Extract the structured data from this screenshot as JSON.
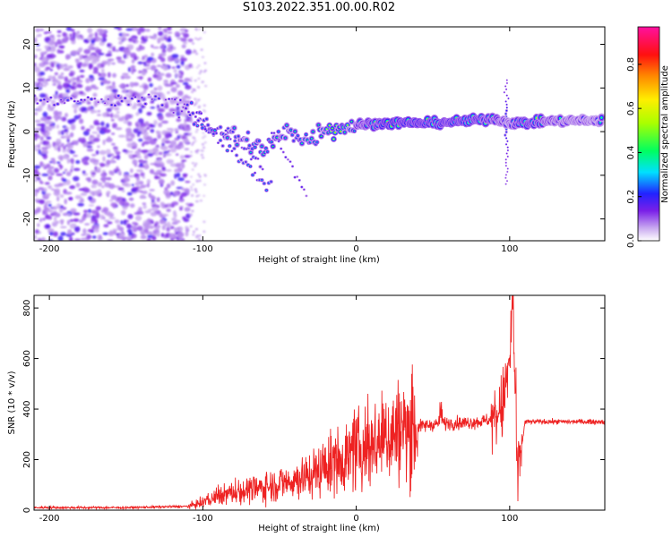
{
  "title": "S103.2022.351.00.00.R02",
  "chart_data": [
    {
      "type": "heatmap",
      "xlabel": "Height of straight line (km)",
      "ylabel": "Frequency (Hz)",
      "xlim": [
        -210,
        162
      ],
      "ylim": [
        -25,
        24
      ],
      "x_ticks": [
        "-200",
        "-100",
        "0",
        "100"
      ],
      "x_tick_values": [
        -200,
        -100,
        0,
        100
      ],
      "y_ticks": [
        "-20",
        "-10",
        "0",
        "10",
        "20"
      ],
      "y_tick_values": [
        -20,
        -10,
        0,
        10,
        20
      ],
      "colorbar": {
        "label": "Normalized spectral amplitude",
        "ticks": [
          "0.0",
          "0.2",
          "0.4",
          "0.6",
          "0.8"
        ],
        "tick_values": [
          0,
          0.2,
          0.4,
          0.6,
          0.8
        ],
        "range": [
          0,
          0.97
        ]
      },
      "features": {
        "noise_region_x": [
          -210,
          -108
        ],
        "upper_band": {
          "x": [
            -210,
            -120
          ],
          "freq": 7,
          "amplitude": 0.25
        },
        "descending_branches": [
          {
            "x": [
              -105,
              -55
            ],
            "freq": [
              3,
              -13
            ],
            "amplitude": 0.35
          },
          {
            "x": [
              -85,
              -60
            ],
            "freq": [
              1,
              -8
            ],
            "amplitude": 0.3
          },
          {
            "x": [
              -55,
              -32
            ],
            "freq": [
              0,
              -15
            ],
            "amplitude": 0.2
          }
        ],
        "main_ridge": [
          {
            "x": -120,
            "freq": 7,
            "amplitude": 0.2
          },
          {
            "x": -100,
            "freq": 2,
            "amplitude": 0.35
          },
          {
            "x": -80,
            "freq": -1,
            "amplitude": 0.4
          },
          {
            "x": -60,
            "freq": -4,
            "amplitude": 0.45
          },
          {
            "x": -45,
            "freq": 0,
            "amplitude": 0.5
          },
          {
            "x": -30,
            "freq": -2,
            "amplitude": 0.45
          },
          {
            "x": -20,
            "freq": 1,
            "amplitude": 0.7
          },
          {
            "x": -10,
            "freq": 1,
            "amplitude": 0.8
          },
          {
            "x": 0,
            "freq": 1.5,
            "amplitude": 0.6
          },
          {
            "x": 20,
            "freq": 2,
            "amplitude": 0.9
          },
          {
            "x": 50,
            "freq": 2,
            "amplitude": 0.85
          },
          {
            "x": 75,
            "freq": 2.5,
            "amplitude": 0.85
          },
          {
            "x": 90,
            "freq": 3,
            "amplitude": 0.7
          },
          {
            "x": 100,
            "freq": 2,
            "amplitude": 0.5
          },
          {
            "x": 110,
            "freq": 2,
            "amplitude": 0.85
          },
          {
            "x": 130,
            "freq": 2.5,
            "amplitude": 0.55
          },
          {
            "x": 160,
            "freq": 2.5,
            "amplitude": 0.5
          }
        ],
        "vertical_spike": {
          "x": 98,
          "freq_range": [
            -12,
            12
          ]
        }
      }
    },
    {
      "type": "line",
      "xlabel": "Height of straight line (km)",
      "ylabel": "SNR (10 * v/v)",
      "xlim": [
        -210,
        162
      ],
      "ylim": [
        0,
        850
      ],
      "x_ticks": [
        "-200",
        "-100",
        "0",
        "100"
      ],
      "x_tick_values": [
        -200,
        -100,
        0,
        100
      ],
      "y_ticks": [
        "0",
        "200",
        "400",
        "600",
        "800"
      ],
      "y_tick_values": [
        0,
        200,
        400,
        600,
        800
      ],
      "series": [
        {
          "color": "#ee2222",
          "x": [
            -210,
            -150,
            -110,
            -100,
            -90,
            -80,
            -70,
            -60,
            -50,
            -40,
            -30,
            -20,
            -10,
            0,
            10,
            20,
            30,
            40,
            50,
            60,
            70,
            80,
            90,
            95,
            100,
            102,
            105,
            110,
            130,
            162
          ],
          "y": [
            10,
            10,
            15,
            30,
            55,
            70,
            80,
            90,
            105,
            120,
            140,
            170,
            200,
            230,
            260,
            290,
            320,
            330,
            340,
            345,
            345,
            350,
            360,
            400,
            580,
            850,
            120,
            350,
            350,
            350
          ]
        }
      ]
    }
  ]
}
